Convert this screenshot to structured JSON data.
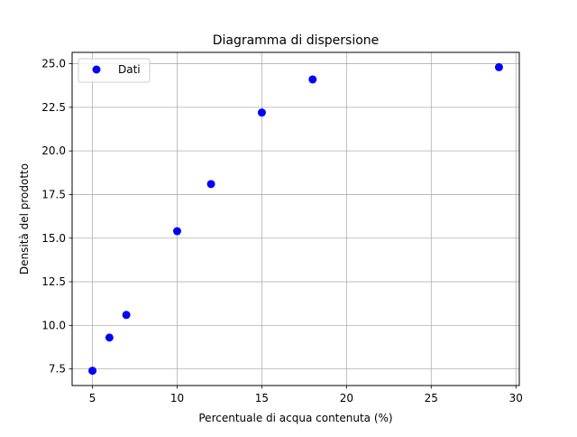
{
  "chart_data": {
    "type": "scatter",
    "title": "Diagramma di dispersione",
    "xlabel": "Percentuale di acqua contenuta (%)",
    "ylabel": "Densità del prodotto",
    "xlim": [
      3.8,
      30.2
    ],
    "ylim": [
      6.55,
      25.65
    ],
    "x_ticks": [
      5,
      10,
      15,
      20,
      25,
      30
    ],
    "x_tick_labels": [
      "5",
      "10",
      "15",
      "20",
      "25",
      "30"
    ],
    "y_ticks": [
      7.5,
      10.0,
      12.5,
      15.0,
      17.5,
      20.0,
      22.5,
      25.0
    ],
    "y_tick_labels": [
      "7.5",
      "10.0",
      "12.5",
      "15.0",
      "17.5",
      "20.0",
      "22.5",
      "25.0"
    ],
    "grid": true,
    "legend_position": "top-left",
    "series": [
      {
        "name": "Dati",
        "color": "#0000ff",
        "x": [
          5,
          6,
          7,
          10,
          12,
          15,
          18,
          29
        ],
        "y": [
          7.4,
          9.3,
          10.6,
          15.4,
          18.1,
          22.2,
          24.1,
          24.8
        ]
      }
    ]
  }
}
